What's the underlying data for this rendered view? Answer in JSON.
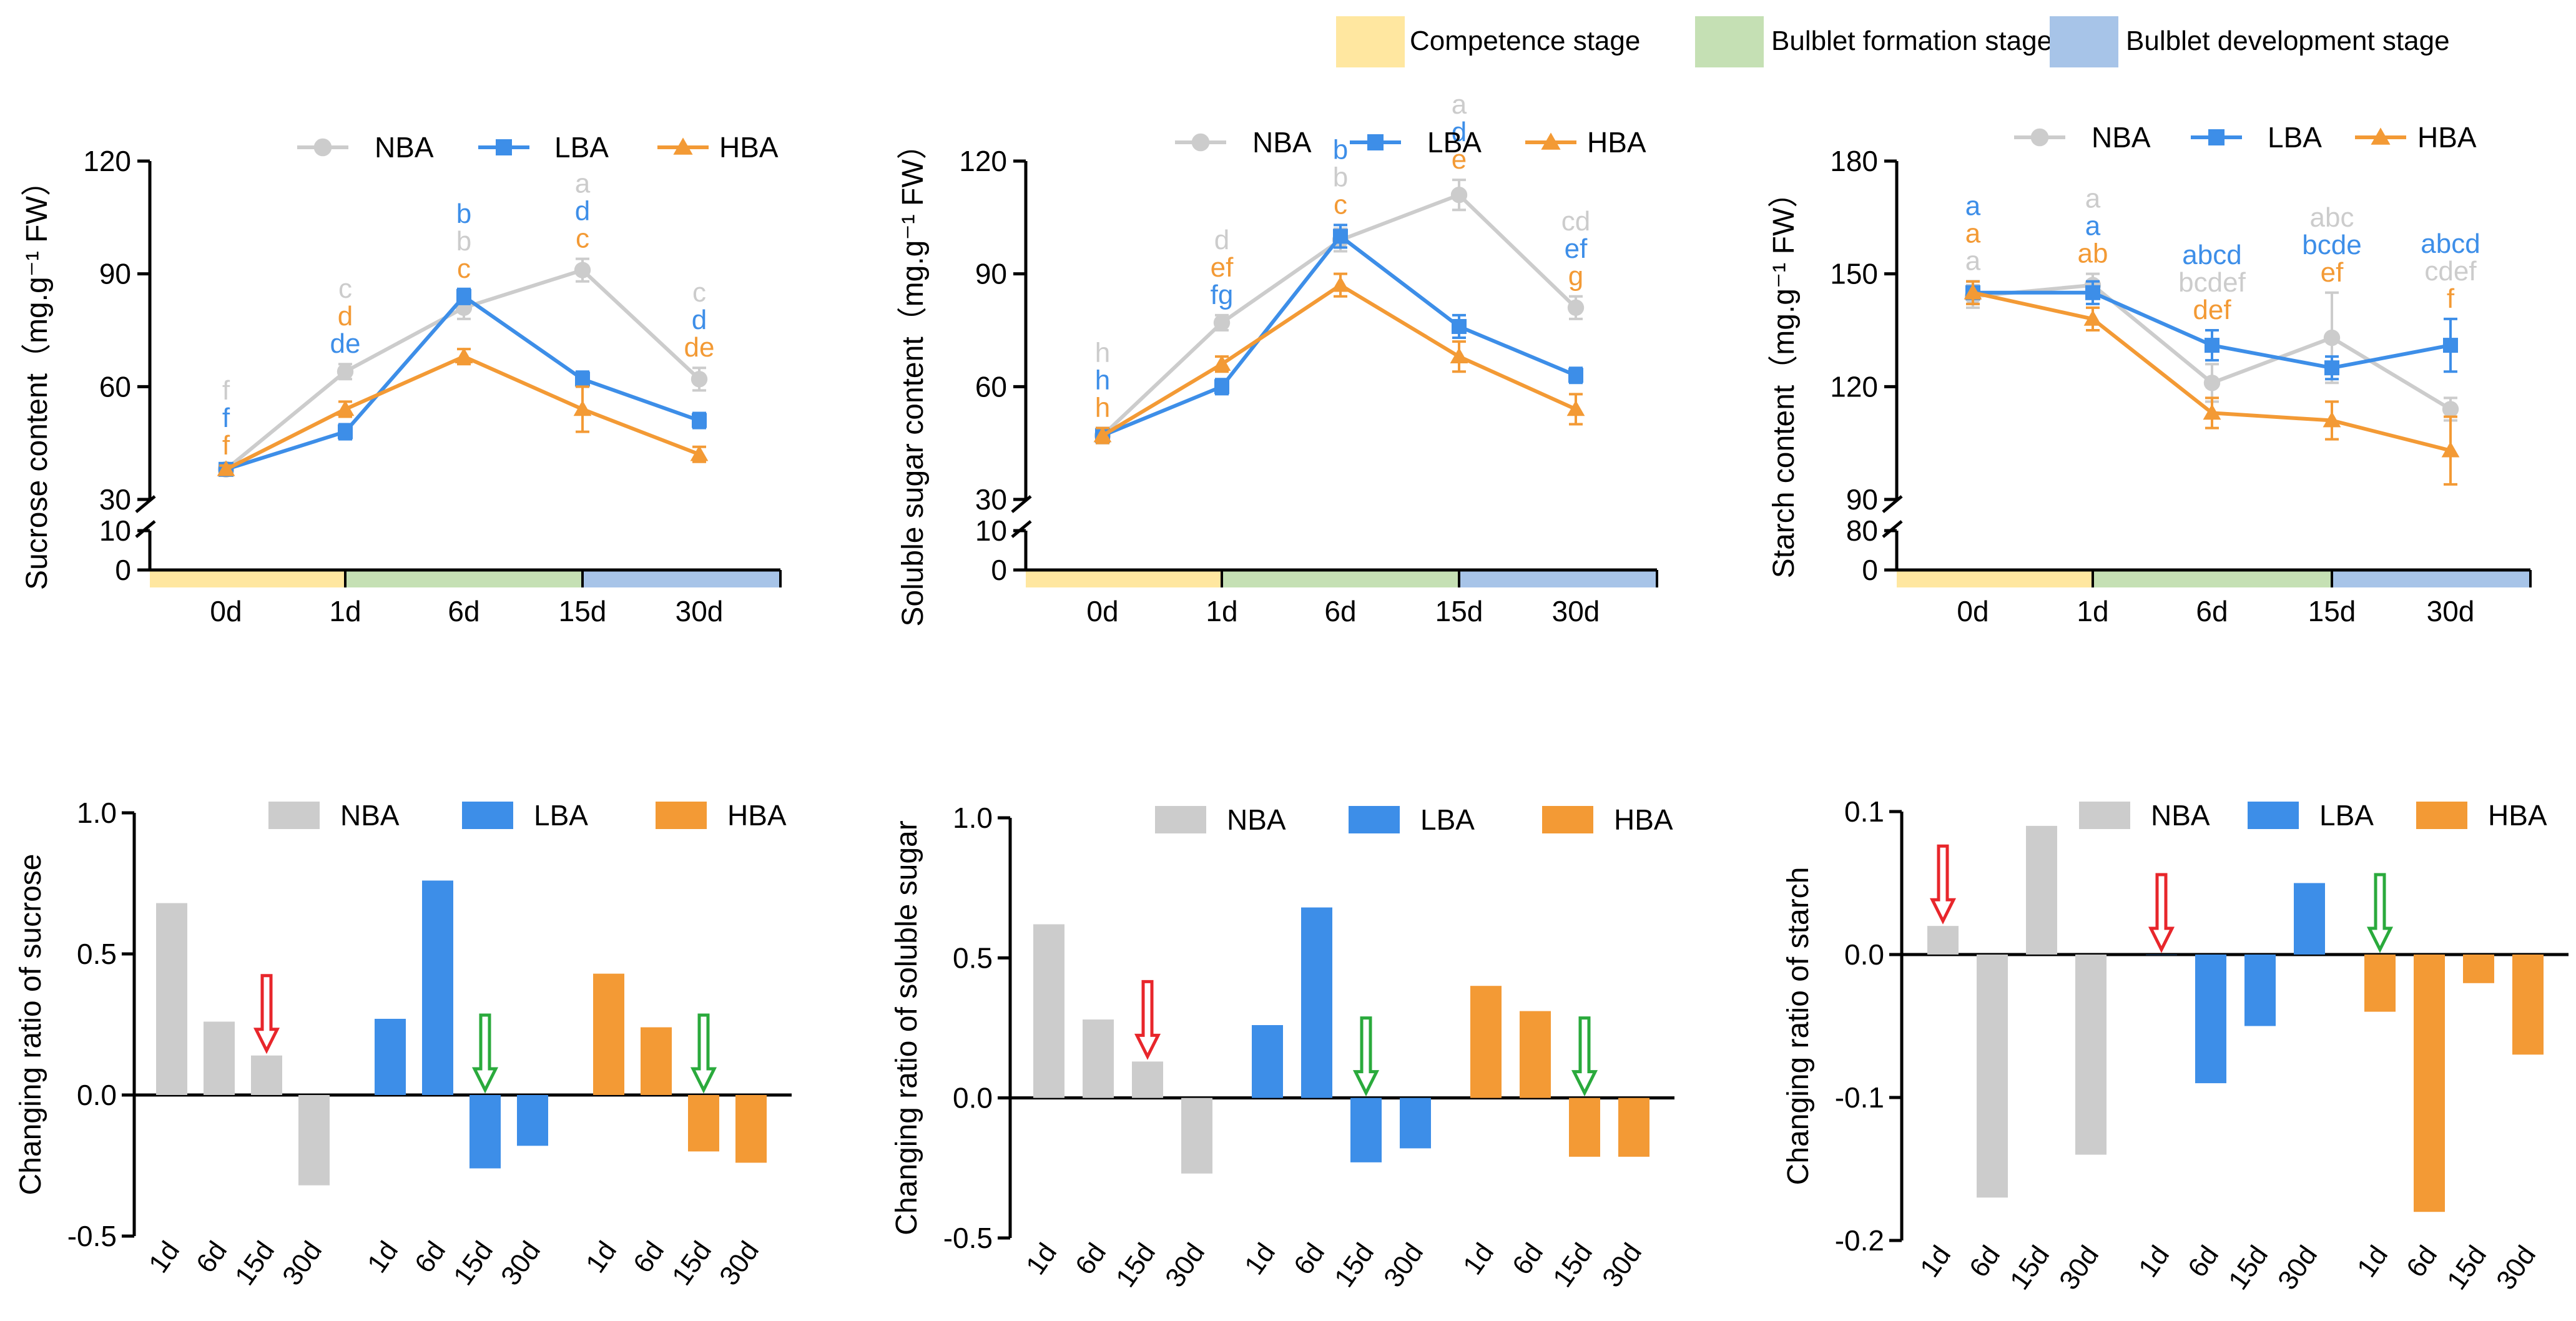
{
  "stage_legend": {
    "items": [
      {
        "label": "Competence stage",
        "color": "#FFE7A0"
      },
      {
        "label": "Bulblet formation stage",
        "color": "#C5E0B4"
      },
      {
        "label": "Bulblet development stage",
        "color": "#A7C4E8"
      }
    ]
  },
  "colors": {
    "NBA": "#CCCCCC",
    "LBA": "#3D8EE8",
    "HBA": "#F39A35",
    "red_arrow": "#E8262B",
    "green_arrow": "#2AAA3C"
  },
  "chart_data": [
    {
      "id": "sucrose",
      "type": "line",
      "ylabel": "Sucrose content（mg.g⁻¹ FW）",
      "categories": [
        "0d",
        "1d",
        "6d",
        "15d",
        "30d"
      ],
      "yticks_upper": [
        "30",
        "60",
        "90",
        "120"
      ],
      "yticks_lower": [
        "0",
        "10"
      ],
      "ylim_upper": [
        30,
        120
      ],
      "ylim_lower": [
        0,
        10
      ],
      "axis_break": true,
      "legend": [
        "NBA",
        "LBA",
        "HBA"
      ],
      "series": [
        {
          "name": "NBA",
          "values": [
            38,
            64,
            81,
            91,
            62
          ],
          "errors": [
            1,
            2,
            3,
            3,
            3
          ],
          "letters": [
            "f",
            "c",
            "b",
            "a",
            "c"
          ]
        },
        {
          "name": "LBA",
          "values": [
            38,
            48,
            84,
            62,
            51
          ],
          "errors": [
            1,
            2,
            2,
            2,
            2
          ],
          "letters": [
            "f",
            "de",
            "b",
            "d",
            "d"
          ]
        },
        {
          "name": "HBA",
          "values": [
            38,
            54,
            68,
            54,
            42
          ],
          "errors": [
            1,
            2,
            2,
            6,
            2
          ],
          "letters": [
            "f",
            "d",
            "c",
            "c",
            "de"
          ]
        }
      ]
    },
    {
      "id": "soluble",
      "type": "line",
      "ylabel": "Soluble  sugar content（mg.g⁻¹ FW）",
      "categories": [
        "0d",
        "1d",
        "6d",
        "15d",
        "30d"
      ],
      "yticks_upper": [
        "30",
        "60",
        "90",
        "120"
      ],
      "yticks_lower": [
        "0",
        "10"
      ],
      "ylim_upper": [
        30,
        120
      ],
      "ylim_lower": [
        0,
        10
      ],
      "axis_break": true,
      "legend": [
        "NBA",
        "LBA",
        "HBA"
      ],
      "series": [
        {
          "name": "NBA",
          "values": [
            47,
            77,
            99,
            111,
            81
          ],
          "errors": [
            2,
            2,
            3,
            4,
            3
          ],
          "letters": [
            "h",
            "d",
            "b",
            "a",
            "cd"
          ]
        },
        {
          "name": "LBA",
          "values": [
            47,
            60,
            100,
            76,
            63
          ],
          "errors": [
            2,
            2,
            3,
            3,
            2
          ],
          "letters": [
            "h",
            "fg",
            "b",
            "d",
            "ef"
          ]
        },
        {
          "name": "HBA",
          "values": [
            47,
            66,
            87,
            68,
            54
          ],
          "errors": [
            2,
            2,
            3,
            4,
            4
          ],
          "letters": [
            "h",
            "ef",
            "c",
            "e",
            "g"
          ]
        }
      ]
    },
    {
      "id": "starch",
      "type": "line",
      "ylabel": "Starch content（mg.g⁻¹ FW）",
      "categories": [
        "0d",
        "1d",
        "6d",
        "15d",
        "30d"
      ],
      "yticks_upper": [
        "90",
        "120",
        "150",
        "180"
      ],
      "yticks_lower": [
        "0",
        "80"
      ],
      "ylim_upper": [
        90,
        180
      ],
      "ylim_lower": [
        0,
        80
      ],
      "axis_break": true,
      "legend": [
        "NBA",
        "LBA",
        "HBA"
      ],
      "series": [
        {
          "name": "NBA",
          "values": [
            144,
            147,
            121,
            133,
            114
          ],
          "errors": [
            3,
            3,
            5,
            12,
            3
          ],
          "letters": [
            "a",
            "a",
            "bcdef",
            "abc",
            "cdef"
          ]
        },
        {
          "name": "LBA",
          "values": [
            145,
            145,
            131,
            125,
            131
          ],
          "errors": [
            3,
            3,
            4,
            3,
            7
          ],
          "letters": [
            "a",
            "a",
            "abcd",
            "bcde",
            "abcd"
          ]
        },
        {
          "name": "HBA",
          "values": [
            145,
            138,
            113,
            111,
            103
          ],
          "errors": [
            3,
            3,
            4,
            5,
            9
          ],
          "letters": [
            "a",
            "ab",
            "def",
            "ef",
            "f"
          ]
        }
      ]
    },
    {
      "id": "ratio_sucrose",
      "type": "bar",
      "ylabel": "Changing ratio of sucrose",
      "ylim": [
        -0.5,
        1.0
      ],
      "yticks": [
        "-0.5",
        "0.0",
        "0.5",
        "1.0"
      ],
      "legend": [
        "NBA",
        "LBA",
        "HBA"
      ],
      "groups": [
        {
          "name": "NBA",
          "categories": [
            "1d",
            "6d",
            "15d",
            "30d"
          ],
          "values": [
            0.68,
            0.26,
            0.14,
            -0.32
          ]
        },
        {
          "name": "LBA",
          "categories": [
            "1d",
            "6d",
            "15d",
            "30d"
          ],
          "values": [
            0.27,
            0.76,
            -0.26,
            -0.18
          ]
        },
        {
          "name": "HBA",
          "categories": [
            "1d",
            "6d",
            "15d",
            "30d"
          ],
          "values": [
            0.43,
            0.24,
            -0.2,
            -0.24
          ]
        }
      ],
      "arrows": [
        {
          "group": "NBA",
          "category": "15d",
          "color": "red"
        },
        {
          "group": "LBA",
          "category": "15d",
          "color": "green"
        },
        {
          "group": "HBA",
          "category": "15d",
          "color": "green"
        }
      ]
    },
    {
      "id": "ratio_soluble",
      "type": "bar",
      "ylabel": "Changing ratio of soluble sugar",
      "ylim": [
        -0.5,
        1.0
      ],
      "yticks": [
        "-0.5",
        "0.0",
        "0.5",
        "1.0"
      ],
      "legend": [
        "NBA",
        "LBA",
        "HBA"
      ],
      "groups": [
        {
          "name": "NBA",
          "categories": [
            "1d",
            "6d",
            "15d",
            "30d"
          ],
          "values": [
            0.62,
            0.28,
            0.13,
            -0.27
          ]
        },
        {
          "name": "LBA",
          "categories": [
            "1d",
            "6d",
            "15d",
            "30d"
          ],
          "values": [
            0.26,
            0.68,
            -0.23,
            -0.18
          ]
        },
        {
          "name": "HBA",
          "categories": [
            "1d",
            "6d",
            "15d",
            "30d"
          ],
          "values": [
            0.4,
            0.31,
            -0.21,
            -0.21
          ]
        }
      ],
      "arrows": [
        {
          "group": "NBA",
          "category": "15d",
          "color": "red"
        },
        {
          "group": "LBA",
          "category": "15d",
          "color": "green"
        },
        {
          "group": "HBA",
          "category": "15d",
          "color": "green"
        }
      ]
    },
    {
      "id": "ratio_starch",
      "type": "bar",
      "ylabel": "Changing ratio of starch",
      "ylim": [
        -0.2,
        0.1
      ],
      "yticks": [
        "-0.2",
        "-0.1",
        "0.0",
        "0.1"
      ],
      "legend": [
        "NBA",
        "LBA",
        "HBA"
      ],
      "groups": [
        {
          "name": "NBA",
          "categories": [
            "1d",
            "6d",
            "15d",
            "30d"
          ],
          "values": [
            0.02,
            -0.17,
            0.09,
            -0.14
          ]
        },
        {
          "name": "LBA",
          "categories": [
            "1d",
            "6d",
            "15d",
            "30d"
          ],
          "values": [
            0.0,
            -0.09,
            -0.05,
            0.05
          ]
        },
        {
          "name": "HBA",
          "categories": [
            "1d",
            "6d",
            "15d",
            "30d"
          ],
          "values": [
            -0.04,
            -0.18,
            -0.02,
            -0.07
          ]
        }
      ],
      "arrows": [
        {
          "group": "NBA",
          "category": "1d",
          "color": "red"
        },
        {
          "group": "LBA",
          "category": "1d",
          "color": "red"
        },
        {
          "group": "HBA",
          "category": "1d",
          "color": "green"
        }
      ]
    }
  ]
}
